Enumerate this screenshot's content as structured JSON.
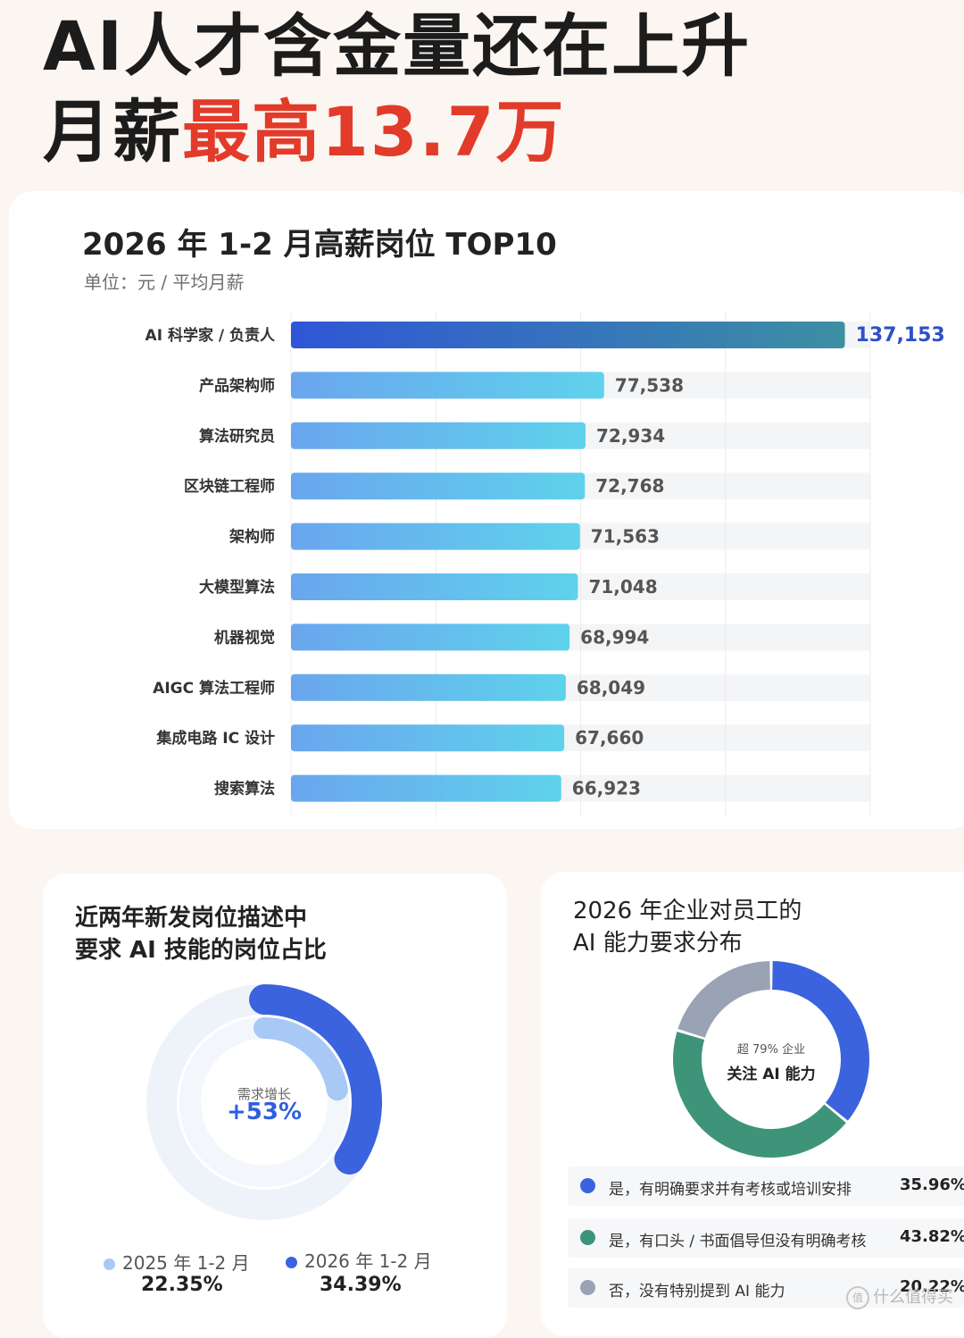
{
  "headline": {
    "line1": "AI人才含金量还在上升",
    "line2_prefix": "月薪",
    "line2_highlight": "最高13.7万"
  },
  "salary_chart": {
    "title": "2026 年 1-2 月高薪岗位 TOP10",
    "unit": "单位：元 / 平均月薪"
  },
  "left_card": {
    "title_line1": "近两年新发岗位描述中",
    "title_line2": "要求 AI 技能的岗位占比",
    "center_label": "需求增长",
    "center_value": "+53%",
    "legend": [
      {
        "label": "2025 年 1-2 月",
        "value": "22.35%"
      },
      {
        "label": "2026 年 1-2 月",
        "value": "34.39%"
      }
    ]
  },
  "right_card": {
    "title_line1": "2026 年企业对员工的",
    "title_line2": "AI 能力要求分布",
    "center_small": "超 79% 企业",
    "center_big": "关注 AI 能力",
    "legend": [
      {
        "label": "是，有明确要求并有考核或培训安排",
        "value": "35.96%"
      },
      {
        "label": "是，有口头 / 书面倡导但没有明确考核",
        "value": "43.82%"
      },
      {
        "label": "否，没有特别提到 AI 能力",
        "value": "20.22%"
      }
    ]
  },
  "watermark": "什么值得买",
  "colors": {
    "accent_red": "#e23b2a",
    "top_bar_start": "#2f56d6",
    "top_bar_end": "#3d8fa3",
    "bar_start": "#6aa6ee",
    "bar_end": "#5fd2ec",
    "ring_2026": "#3a63dd",
    "ring_2025": "#a8c8f5",
    "donut_blue": "#3b63dd",
    "donut_green": "#3e9478",
    "donut_gray": "#9aa3b4"
  },
  "chart_data": [
    {
      "type": "bar",
      "orientation": "horizontal",
      "title": "2026 年 1-2 月高薪岗位 TOP10",
      "subtitle": "单位：元 / 平均月薪",
      "categories": [
        "AI 科学家 / 负责人",
        "产品架构师",
        "算法研究员",
        "区块链工程师",
        "架构师",
        "大模型算法",
        "机器视觉",
        "AIGC 算法工程师",
        "集成电路 IC 设计",
        "搜索算法"
      ],
      "values": [
        137153,
        77538,
        72934,
        72768,
        71563,
        71048,
        68994,
        68049,
        67660,
        66923
      ],
      "value_labels": [
        "137,153",
        "77,538",
        "72,934",
        "72,768",
        "71,563",
        "71,048",
        "68,994",
        "68,049",
        "67,660",
        "66,923"
      ],
      "xlim": [
        0,
        140000
      ],
      "grid": true
    },
    {
      "type": "pie",
      "variant": "radial-ring",
      "title": "近两年新发岗位描述中要求 AI 技能的岗位占比",
      "categories": [
        "2025 年 1-2 月",
        "2026 年 1-2 月"
      ],
      "values": [
        22.35,
        34.39
      ],
      "annotation": "需求增长 +53%"
    },
    {
      "type": "pie",
      "variant": "donut",
      "title": "2026 年企业对员工的 AI 能力要求分布",
      "categories": [
        "是，有明确要求并有考核或培训安排",
        "是，有口头 / 书面倡导但没有明确考核",
        "否，没有特别提到 AI 能力"
      ],
      "values": [
        35.96,
        43.82,
        20.22
      ],
      "annotation": "超 79% 企业 关注 AI 能力"
    }
  ]
}
